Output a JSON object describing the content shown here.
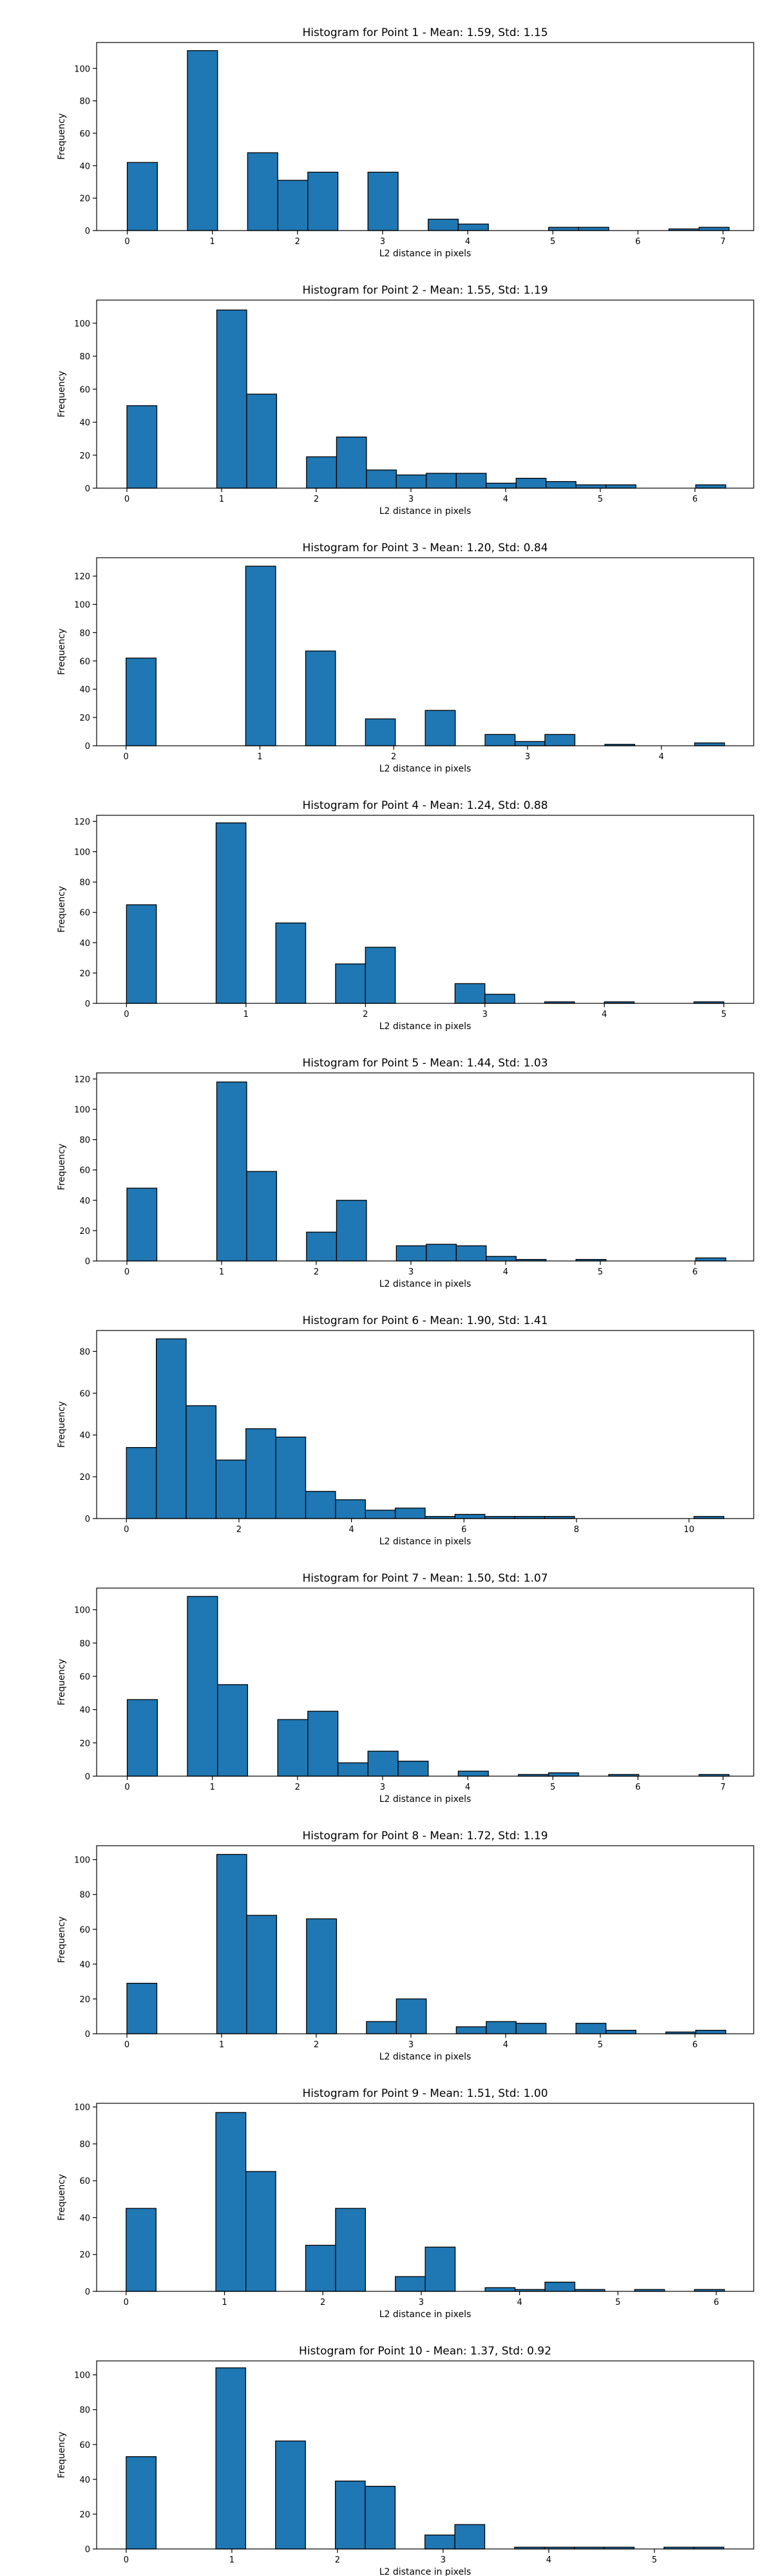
{
  "figure": {
    "bar_color": "#1f77b4",
    "edge_color": "#000000"
  },
  "chart_data": [
    {
      "type": "bar",
      "title": "Histogram for Point 1 - Mean: 1.59, Std: 1.15",
      "xlabel": "L2 distance in pixels",
      "ylabel": "Frequency",
      "xlim": [
        -0.36,
        7.36
      ],
      "ylim": [
        0,
        116
      ],
      "xticks": [
        0,
        1,
        2,
        3,
        4,
        5,
        6,
        7
      ],
      "yticks": [
        0,
        20,
        40,
        60,
        80,
        100
      ],
      "bin_edges": [
        0,
        0.354,
        0.707,
        1.061,
        1.414,
        1.768,
        2.121,
        2.475,
        2.828,
        3.182,
        3.536,
        3.889,
        4.243,
        4.596,
        4.95,
        5.303,
        5.657,
        6.01,
        6.364,
        6.718,
        7.071
      ],
      "values": [
        42,
        0,
        111,
        0,
        48,
        31,
        36,
        0,
        36,
        0,
        7,
        4,
        0,
        0,
        2,
        2,
        0,
        0,
        1,
        2
      ]
    },
    {
      "type": "bar",
      "title": "Histogram for Point 2 - Mean: 1.55, Std: 1.19",
      "xlabel": "L2 distance in pixels",
      "ylabel": "Frequency",
      "xlim": [
        -0.32,
        6.62
      ],
      "ylim": [
        0,
        114
      ],
      "xticks": [
        0,
        1,
        2,
        3,
        4,
        5,
        6
      ],
      "yticks": [
        0,
        20,
        40,
        60,
        80,
        100
      ],
      "bin_edges": [
        0,
        0.316,
        0.632,
        0.949,
        1.265,
        1.581,
        1.897,
        2.214,
        2.53,
        2.846,
        3.162,
        3.479,
        3.795,
        4.111,
        4.427,
        4.743,
        5.06,
        5.376,
        5.692,
        6.008,
        6.325
      ],
      "values": [
        50,
        0,
        0,
        108,
        57,
        0,
        19,
        31,
        11,
        8,
        9,
        9,
        3,
        6,
        4,
        2,
        2,
        0,
        0,
        2
      ]
    },
    {
      "type": "bar",
      "title": "Histogram for Point 3 - Mean: 1.20, Std: 0.84",
      "xlabel": "L2 distance in pixels",
      "ylabel": "Frequency",
      "xlim": [
        -0.22,
        4.69
      ],
      "ylim": [
        0,
        133
      ],
      "xticks": [
        0,
        1,
        2,
        3,
        4
      ],
      "yticks": [
        0,
        20,
        40,
        60,
        80,
        100,
        120
      ],
      "bin_edges": [
        0,
        0.224,
        0.447,
        0.671,
        0.894,
        1.118,
        1.342,
        1.565,
        1.789,
        2.012,
        2.236,
        2.46,
        2.683,
        2.907,
        3.13,
        3.354,
        3.578,
        3.801,
        4.025,
        4.249,
        4.472
      ],
      "values": [
        62,
        0,
        0,
        0,
        127,
        0,
        67,
        0,
        19,
        0,
        25,
        0,
        8,
        3,
        8,
        0,
        1,
        0,
        0,
        2
      ]
    },
    {
      "type": "bar",
      "title": "Histogram for Point 4 - Mean: 1.24, Std: 0.88",
      "xlabel": "L2 distance in pixels",
      "ylabel": "Frequency",
      "xlim": [
        -0.25,
        5.25
      ],
      "ylim": [
        0,
        124
      ],
      "xticks": [
        0,
        1,
        2,
        3,
        4,
        5
      ],
      "yticks": [
        0,
        20,
        40,
        60,
        80,
        100,
        120
      ],
      "bin_edges": [
        0,
        0.25,
        0.5,
        0.75,
        1.0,
        1.25,
        1.5,
        1.75,
        2.0,
        2.25,
        2.5,
        2.75,
        3.0,
        3.25,
        3.5,
        3.75,
        4.0,
        4.25,
        4.5,
        4.75,
        5.0
      ],
      "values": [
        65,
        0,
        0,
        119,
        0,
        53,
        0,
        26,
        37,
        0,
        0,
        13,
        6,
        0,
        1,
        0,
        1,
        0,
        0,
        1
      ]
    },
    {
      "type": "bar",
      "title": "Histogram for Point 5 - Mean: 1.44, Std: 1.03",
      "xlabel": "L2 distance in pixels",
      "ylabel": "Frequency",
      "xlim": [
        -0.32,
        6.62
      ],
      "ylim": [
        0,
        124
      ],
      "xticks": [
        0,
        1,
        2,
        3,
        4,
        5,
        6
      ],
      "yticks": [
        0,
        20,
        40,
        60,
        80,
        100,
        120
      ],
      "bin_edges": [
        0,
        0.316,
        0.632,
        0.949,
        1.265,
        1.581,
        1.897,
        2.214,
        2.53,
        2.846,
        3.162,
        3.479,
        3.795,
        4.111,
        4.427,
        4.743,
        5.06,
        5.376,
        5.692,
        6.008,
        6.325
      ],
      "values": [
        48,
        0,
        0,
        118,
        59,
        0,
        19,
        40,
        0,
        10,
        11,
        10,
        3,
        1,
        0,
        1,
        0,
        0,
        0,
        2
      ]
    },
    {
      "type": "bar",
      "title": "Histogram for Point 6 - Mean: 1.90, Std: 1.41",
      "xlabel": "L2 distance in pixels",
      "ylabel": "Frequency",
      "xlim": [
        -0.53,
        11.15
      ],
      "ylim": [
        0,
        90
      ],
      "xticks": [
        0,
        2,
        4,
        6,
        8,
        10
      ],
      "yticks": [
        0,
        20,
        40,
        60,
        80
      ],
      "bin_edges": [
        0,
        0.531,
        1.062,
        1.593,
        2.124,
        2.655,
        3.186,
        3.717,
        4.248,
        4.779,
        5.31,
        5.841,
        6.372,
        6.903,
        7.434,
        7.965,
        8.496,
        9.027,
        9.558,
        10.089,
        10.62
      ],
      "values": [
        34,
        86,
        54,
        28,
        43,
        39,
        13,
        9,
        4,
        5,
        1,
        2,
        1,
        1,
        1,
        0,
        0,
        0,
        0,
        1
      ]
    },
    {
      "type": "bar",
      "title": "Histogram for Point 7 - Mean: 1.50, Std: 1.07",
      "xlabel": "L2 distance in pixels",
      "ylabel": "Frequency",
      "xlim": [
        -0.36,
        7.36
      ],
      "ylim": [
        0,
        113
      ],
      "xticks": [
        0,
        1,
        2,
        3,
        4,
        5,
        6,
        7
      ],
      "yticks": [
        0,
        20,
        40,
        60,
        80,
        100
      ],
      "bin_edges": [
        0,
        0.354,
        0.707,
        1.061,
        1.414,
        1.768,
        2.121,
        2.475,
        2.828,
        3.182,
        3.536,
        3.889,
        4.243,
        4.596,
        4.95,
        5.303,
        5.657,
        6.01,
        6.364,
        6.718,
        7.071
      ],
      "values": [
        46,
        0,
        108,
        55,
        0,
        34,
        39,
        8,
        15,
        9,
        0,
        3,
        0,
        1,
        2,
        0,
        1,
        0,
        0,
        1
      ]
    },
    {
      "type": "bar",
      "title": "Histogram for Point 8 - Mean: 1.72, Std: 1.19",
      "xlabel": "L2 distance in pixels",
      "ylabel": "Frequency",
      "xlim": [
        -0.32,
        6.62
      ],
      "ylim": [
        0,
        108
      ],
      "xticks": [
        0,
        1,
        2,
        3,
        4,
        5,
        6
      ],
      "yticks": [
        0,
        20,
        40,
        60,
        80,
        100
      ],
      "bin_edges": [
        0,
        0.316,
        0.632,
        0.949,
        1.265,
        1.581,
        1.897,
        2.214,
        2.53,
        2.846,
        3.162,
        3.479,
        3.795,
        4.111,
        4.427,
        4.743,
        5.06,
        5.376,
        5.692,
        6.008,
        6.325
      ],
      "values": [
        29,
        0,
        0,
        103,
        68,
        0,
        66,
        0,
        7,
        20,
        0,
        4,
        7,
        6,
        0,
        6,
        2,
        0,
        1,
        2
      ]
    },
    {
      "type": "bar",
      "title": "Histogram for Point 9 - Mean: 1.51, Std: 1.00",
      "xlabel": "L2 distance in pixels",
      "ylabel": "Frequency",
      "xlim": [
        -0.3,
        6.38
      ],
      "ylim": [
        0,
        102
      ],
      "xticks": [
        0,
        1,
        2,
        3,
        4,
        5,
        6
      ],
      "yticks": [
        0,
        20,
        40,
        60,
        80,
        100
      ],
      "bin_edges": [
        0,
        0.304,
        0.608,
        0.912,
        1.217,
        1.521,
        1.825,
        2.129,
        2.433,
        2.737,
        3.041,
        3.345,
        3.65,
        3.954,
        4.258,
        4.562,
        4.866,
        5.17,
        5.474,
        5.778,
        6.083
      ],
      "values": [
        45,
        0,
        0,
        97,
        65,
        0,
        25,
        45,
        0,
        8,
        24,
        0,
        2,
        1,
        5,
        1,
        0,
        1,
        0,
        1
      ]
    },
    {
      "type": "bar",
      "title": "Histogram for Point 10 - Mean: 1.37, Std: 0.92",
      "xlabel": "L2 distance in pixels",
      "ylabel": "Frequency",
      "xlim": [
        -0.28,
        5.94
      ],
      "ylim": [
        0,
        108
      ],
      "xticks": [
        0,
        1,
        2,
        3,
        4,
        5
      ],
      "yticks": [
        0,
        20,
        40,
        60,
        80,
        100
      ],
      "bin_edges": [
        0,
        0.283,
        0.566,
        0.849,
        1.131,
        1.414,
        1.697,
        1.98,
        2.263,
        2.546,
        2.828,
        3.111,
        3.394,
        3.677,
        3.96,
        4.243,
        4.525,
        4.808,
        5.091,
        5.374,
        5.657
      ],
      "values": [
        53,
        0,
        0,
        104,
        0,
        62,
        0,
        39,
        36,
        0,
        8,
        14,
        0,
        1,
        1,
        1,
        1,
        0,
        1,
        1
      ]
    }
  ]
}
